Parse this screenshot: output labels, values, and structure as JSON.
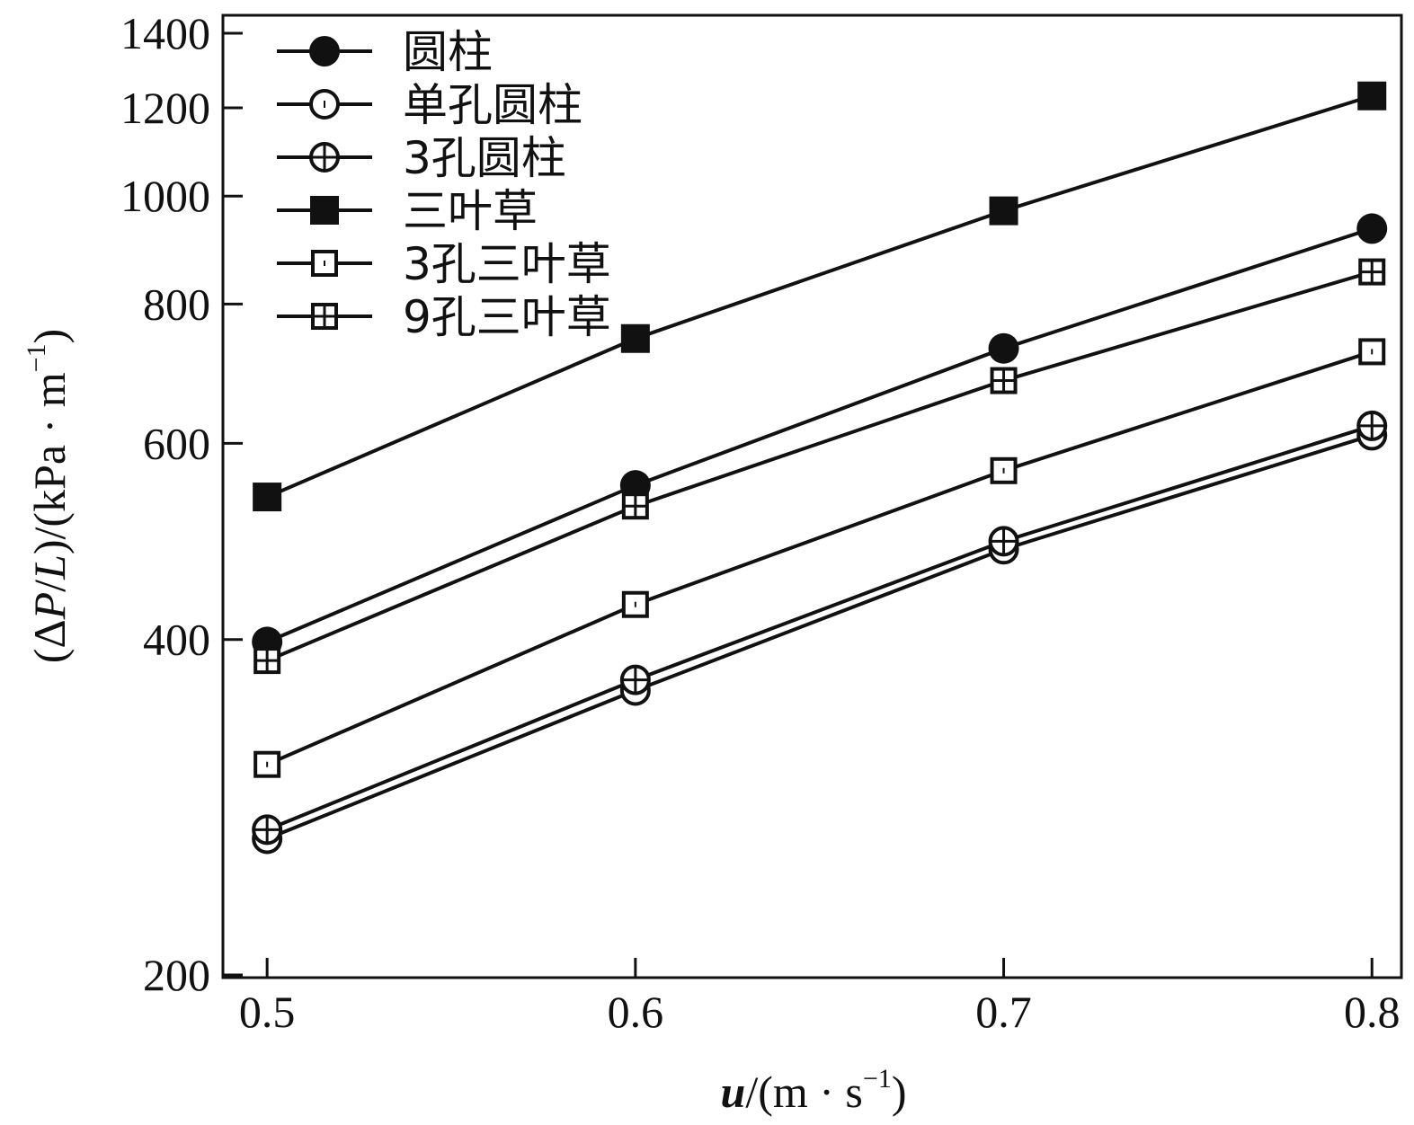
{
  "chart_data": {
    "type": "line",
    "x": [
      0.5,
      0.6,
      0.7,
      0.8
    ],
    "x_ticks": [
      "0.5",
      "0.6",
      "0.7",
      "0.8"
    ],
    "y_ticks": [
      200,
      400,
      600,
      800,
      1000,
      1200,
      1400
    ],
    "y_scale": "log",
    "ylim": [
      200,
      1400
    ],
    "xlim": [
      0.488,
      0.808
    ],
    "xlabel": {
      "var": "u",
      "rest": "/(m · s",
      "exp": "−1",
      "close": ")"
    },
    "ylabel": {
      "open": "(Δ",
      "var1": "P",
      "slash": "/",
      "var2": "L",
      "rest": ")/(kPa · m",
      "exp": "−1",
      "close": ")"
    },
    "legend_position": "top-left",
    "grid": false,
    "series": [
      {
        "name": "圆柱",
        "marker": "filled-circle",
        "values": [
          398,
          550,
          730,
          935
        ]
      },
      {
        "name": "单孔圆柱",
        "marker": "open-circle",
        "values": [
          265,
          360,
          482,
          610
        ]
      },
      {
        "name": "3孔圆柱",
        "marker": "circle-plus",
        "values": [
          270,
          368,
          490,
          622
        ]
      },
      {
        "name": "三叶草",
        "marker": "filled-square",
        "values": [
          537,
          745,
          970,
          1230
        ]
      },
      {
        "name": "3孔三叶草",
        "marker": "open-square",
        "values": [
          309,
          430,
          567,
          725
        ]
      },
      {
        "name": "9孔三叶草",
        "marker": "square-plus",
        "values": [
          383,
          527,
          683,
          855
        ]
      }
    ]
  }
}
